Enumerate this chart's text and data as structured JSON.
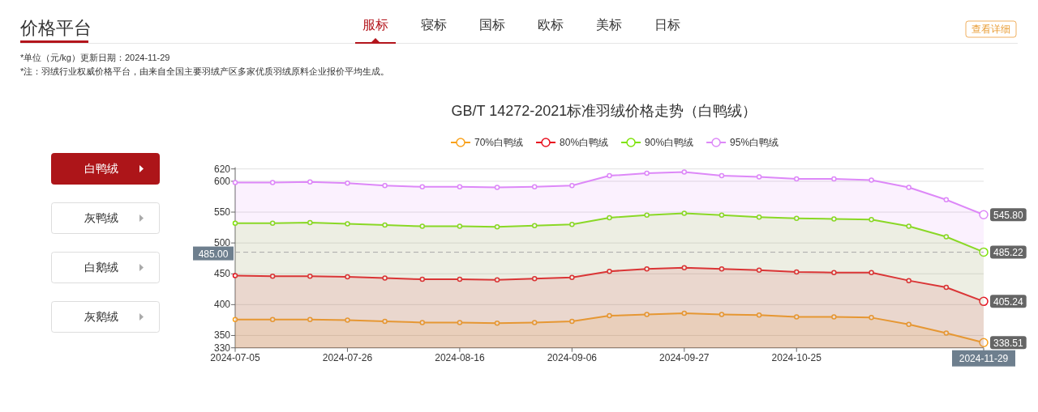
{
  "chart_data": {
    "type": "area",
    "title": "GB/T 14272-2021标准羽绒价格走势（白鸭绒）",
    "categories": [
      "2024-07-05",
      null,
      null,
      "2024-07-26",
      null,
      null,
      "2024-08-16",
      null,
      null,
      "2024-09-06",
      null,
      null,
      "2024-09-27",
      null,
      null,
      "2024-10-25",
      null,
      null,
      null,
      null,
      "2024-11-29"
    ],
    "series": [
      {
        "name": "70%白鸭绒",
        "color": "#f9a11b",
        "values": [
          376,
          376,
          376,
          375,
          373,
          371,
          371,
          370,
          371,
          373,
          382,
          384,
          386,
          384,
          383,
          380,
          380,
          379,
          368,
          354,
          338.51
        ],
        "value_labels": [
          null,
          null,
          null,
          null,
          null,
          null,
          null,
          null,
          null,
          null,
          null,
          null,
          null,
          null,
          null,
          null,
          null,
          null,
          null,
          null,
          "338.51"
        ]
      },
      {
        "name": "80%白鸭绒",
        "color": "#e8101f",
        "values": [
          447,
          446,
          446,
          445,
          443,
          441,
          441,
          440,
          442,
          444,
          454,
          458,
          460,
          458,
          456,
          453,
          452,
          452,
          439,
          428,
          405.24
        ],
        "value_labels": [
          null,
          null,
          null,
          null,
          null,
          null,
          null,
          null,
          null,
          null,
          null,
          null,
          null,
          null,
          null,
          null,
          null,
          null,
          null,
          null,
          "405.24"
        ]
      },
      {
        "name": "90%白鸭绒",
        "color": "#7fe30a",
        "values": [
          532,
          532,
          533,
          531,
          529,
          527,
          527,
          526,
          528,
          530,
          541,
          545,
          548,
          545,
          542,
          540,
          539,
          538,
          527,
          510,
          485.22
        ],
        "value_labels": [
          null,
          null,
          null,
          null,
          null,
          null,
          null,
          null,
          null,
          null,
          null,
          null,
          null,
          null,
          null,
          null,
          null,
          null,
          null,
          null,
          "485.22"
        ]
      },
      {
        "name": "95%白鸭绒",
        "color": "#dd88f8",
        "values": [
          598,
          598,
          599,
          597,
          593,
          591,
          591,
          590,
          591,
          593,
          609,
          613,
          615,
          609,
          607,
          604,
          604,
          602,
          590,
          570,
          545.8
        ],
        "value_labels": [
          null,
          null,
          null,
          null,
          null,
          null,
          null,
          null,
          null,
          null,
          null,
          null,
          null,
          null,
          null,
          null,
          null,
          null,
          null,
          null,
          "545.80"
        ]
      }
    ],
    "ylim": [
      330,
      620
    ],
    "yticks": [
      330,
      350,
      400,
      450,
      500,
      550,
      600,
      620
    ],
    "grid": "y",
    "legend": "top",
    "marker": "circle",
    "line_style": "solid",
    "ref_lines": [
      {
        "axis": "y",
        "value": 485,
        "label": "485.00",
        "color": "#aaaaaa",
        "line_style": "dashed"
      }
    ],
    "annotations": [
      "价格平台",
      "服标",
      "寝标",
      "国标",
      "欧标",
      "美标",
      "日标",
      "查看详细",
      "*单位（元/kg）更新日期：2024-11-29",
      "*注：羽绒行业权威价格平台，由来自全国主要羽绒产区多家优质羽绒原料企业报价平均生成。",
      "白鸭绒",
      "灰鸭绒",
      "白鹅绒",
      "灰鹅绒"
    ]
  }
}
